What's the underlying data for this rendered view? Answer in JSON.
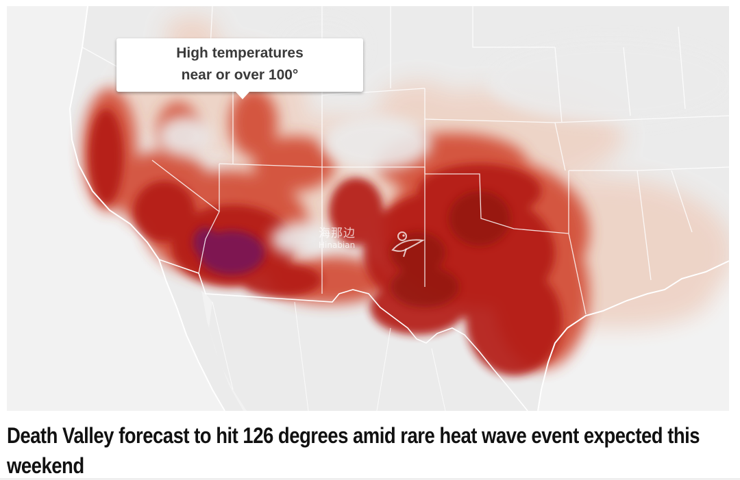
{
  "map": {
    "callout": {
      "line1": "High temperatures",
      "line2": "near or over 100°"
    },
    "watermark": {
      "chinese": "海那边",
      "latin": "Hinabian"
    },
    "colors": {
      "land": "#ebebeb",
      "water": "#ffffff",
      "borders": "#ffffff",
      "heat_light": "#f3ddd2",
      "heat_mid": "#d2472f",
      "heat_high": "#b31d16",
      "heat_extreme": "#8a0f10",
      "heat_max": "#7a1652"
    }
  },
  "article": {
    "headline": "Death Valley forecast to hit 126 degrees amid rare heat wave event expected this weekend"
  }
}
